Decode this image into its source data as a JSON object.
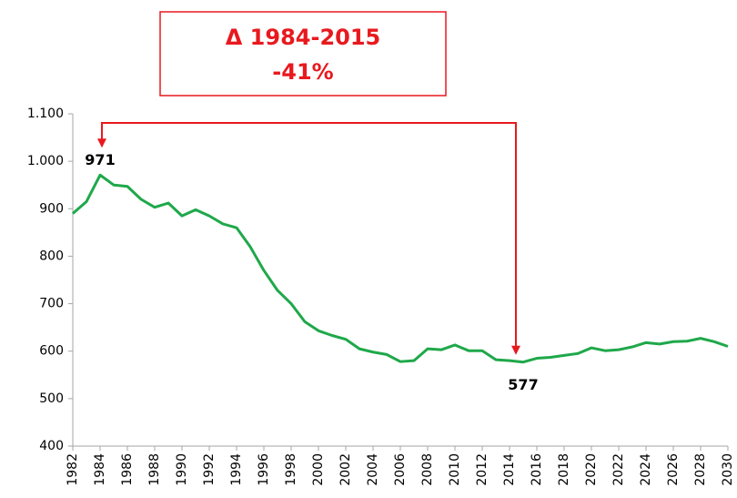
{
  "chart_data": {
    "type": "line",
    "annotation": {
      "title": "Δ 1984-2015",
      "change": "-41%",
      "from_index": 2,
      "to_index": 33
    },
    "x": [
      1982,
      1983,
      1984,
      1985,
      1986,
      1987,
      1988,
      1989,
      1990,
      1991,
      1992,
      1993,
      1994,
      1995,
      1996,
      1997,
      1998,
      1999,
      2000,
      2001,
      2002,
      2003,
      2004,
      2005,
      2006,
      2007,
      2008,
      2009,
      2010,
      2011,
      2012,
      2013,
      2014,
      2015,
      2016,
      2017,
      2018,
      2019,
      2020,
      2021,
      2022,
      2023,
      2024,
      2025,
      2026,
      2027,
      2028,
      2029,
      2030
    ],
    "series": [
      {
        "color": "#1fa84a",
        "values": [
          890,
          915,
          971,
          950,
          947,
          920,
          903,
          912,
          885,
          898,
          885,
          868,
          860,
          820,
          770,
          728,
          700,
          662,
          643,
          633,
          625,
          605,
          598,
          593,
          578,
          580,
          605,
          603,
          613,
          601,
          601,
          582,
          580,
          577,
          585,
          587,
          591,
          595,
          607,
          601,
          603,
          609,
          618,
          615,
          620,
          621,
          627,
          620,
          610
        ]
      }
    ],
    "data_labels": [
      2,
      33
    ],
    "xlim": [
      1982,
      2030
    ],
    "xticks": [
      1982,
      1984,
      1986,
      1988,
      1990,
      1992,
      1994,
      1996,
      1998,
      2000,
      2002,
      2004,
      2006,
      2008,
      2010,
      2012,
      2014,
      2016,
      2018,
      2020,
      2022,
      2024,
      2026,
      2028,
      2030
    ],
    "ylim": [
      400,
      1100
    ],
    "yticks": [
      400,
      500,
      600,
      700,
      800,
      900,
      {
        "value": 1000,
        "label": "1.000"
      },
      {
        "value": 1100,
        "label": "1.100"
      }
    ],
    "grid": false
  }
}
